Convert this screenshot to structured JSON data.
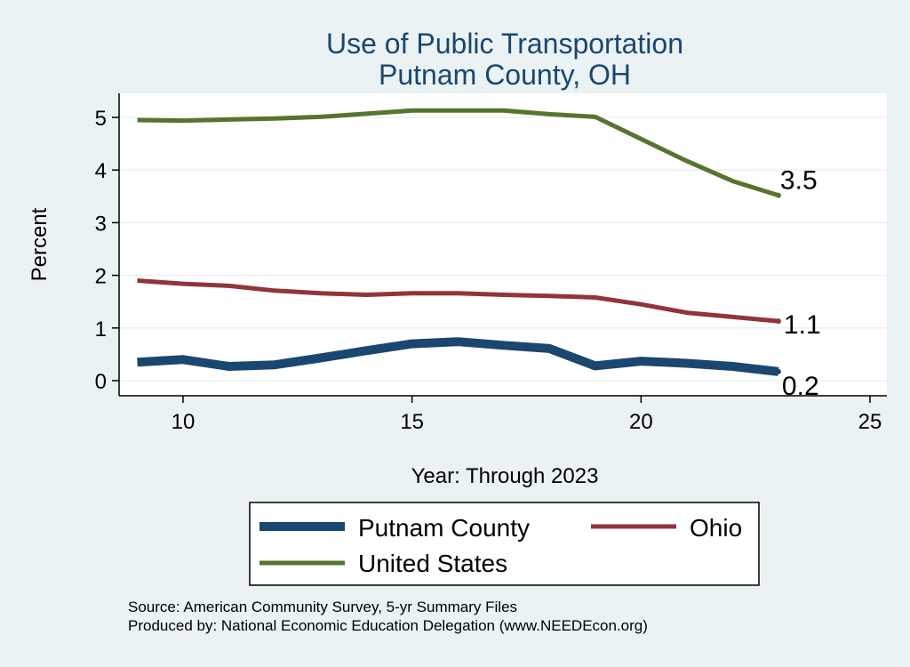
{
  "chart_data": {
    "type": "line",
    "title": [
      "Use of Public Transportation",
      "Putnam County, OH"
    ],
    "xlabel": "Year: Through 2023",
    "ylabel": "Percent",
    "xlim": [
      9,
      25
    ],
    "ylim": [
      0,
      5.2
    ],
    "xticks": [
      10,
      15,
      20,
      25
    ],
    "yticks": [
      0,
      1,
      2,
      3,
      4,
      5
    ],
    "grid": true,
    "x": [
      9,
      10,
      11,
      12,
      13,
      14,
      15,
      16,
      17,
      18,
      19,
      20,
      21,
      22,
      23
    ],
    "series": [
      {
        "name": "Putnam County",
        "color": "#1a476f",
        "values": [
          0.35,
          0.4,
          0.27,
          0.3,
          0.43,
          0.57,
          0.7,
          0.74,
          0.67,
          0.61,
          0.28,
          0.37,
          0.33,
          0.27,
          0.17
        ],
        "end_label": "0.2"
      },
      {
        "name": "Ohio",
        "color": "#90353b",
        "values": [
          1.9,
          1.84,
          1.8,
          1.71,
          1.66,
          1.63,
          1.66,
          1.66,
          1.63,
          1.61,
          1.58,
          1.45,
          1.29,
          1.21,
          1.13
        ],
        "end_label": "1.1"
      },
      {
        "name": "United States",
        "color": "#55752f",
        "values": [
          4.95,
          4.94,
          4.96,
          4.98,
          5.01,
          5.07,
          5.13,
          5.13,
          5.13,
          5.06,
          5.01,
          4.59,
          4.17,
          3.79,
          3.52
        ],
        "end_label": "3.5"
      }
    ],
    "legend_position": "bottom",
    "notes": [
      "Source: American Community Survey, 5-yr Summary Files",
      "Produced by: National Economic Education Delegation (www.NEEDEcon.org)"
    ]
  }
}
